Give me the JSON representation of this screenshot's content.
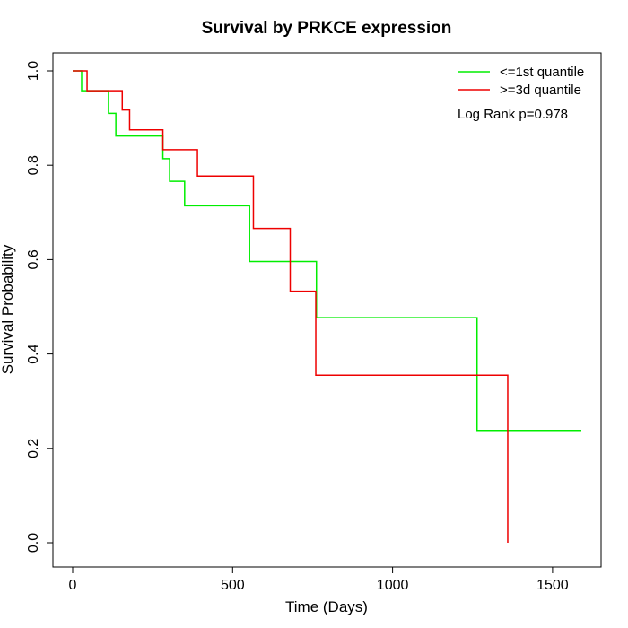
{
  "chart_data": {
    "type": "line",
    "title": "Survival by PRKCE expression",
    "xlabel": "Time (Days)",
    "ylabel": "Survival Probability",
    "xlim": [
      0,
      1600
    ],
    "ylim": [
      0,
      1
    ],
    "x_ticks": [
      0,
      500,
      1000,
      1500
    ],
    "y_ticks": [
      0.0,
      0.2,
      0.4,
      0.6,
      0.8,
      1.0
    ],
    "x_tick_labels": [
      "0",
      "500",
      "1000",
      "1500"
    ],
    "y_tick_labels": [
      "0.0",
      "0.2",
      "0.4",
      "0.6",
      "0.8",
      "1.0"
    ],
    "legend_position": "top-right",
    "annotation": "Log Rank p=0.978",
    "series": [
      {
        "name": "<=1st quantile",
        "color": "#00ee00",
        "x": [
          0,
          28,
          112,
          135,
          282,
          303,
          350,
          553,
          762,
          1264,
          1590
        ],
        "y": [
          1.0,
          0.958,
          0.91,
          0.862,
          0.814,
          0.766,
          0.714,
          0.596,
          0.477,
          0.238,
          0.238
        ]
      },
      {
        "name": ">=3d quantile",
        "color": "#ee0000",
        "x": [
          0,
          45,
          155,
          178,
          282,
          390,
          565,
          680,
          760,
          1360,
          1360
        ],
        "y": [
          1.0,
          0.958,
          0.917,
          0.875,
          0.833,
          0.777,
          0.666,
          0.533,
          0.355,
          0.355,
          0.0
        ]
      }
    ]
  }
}
